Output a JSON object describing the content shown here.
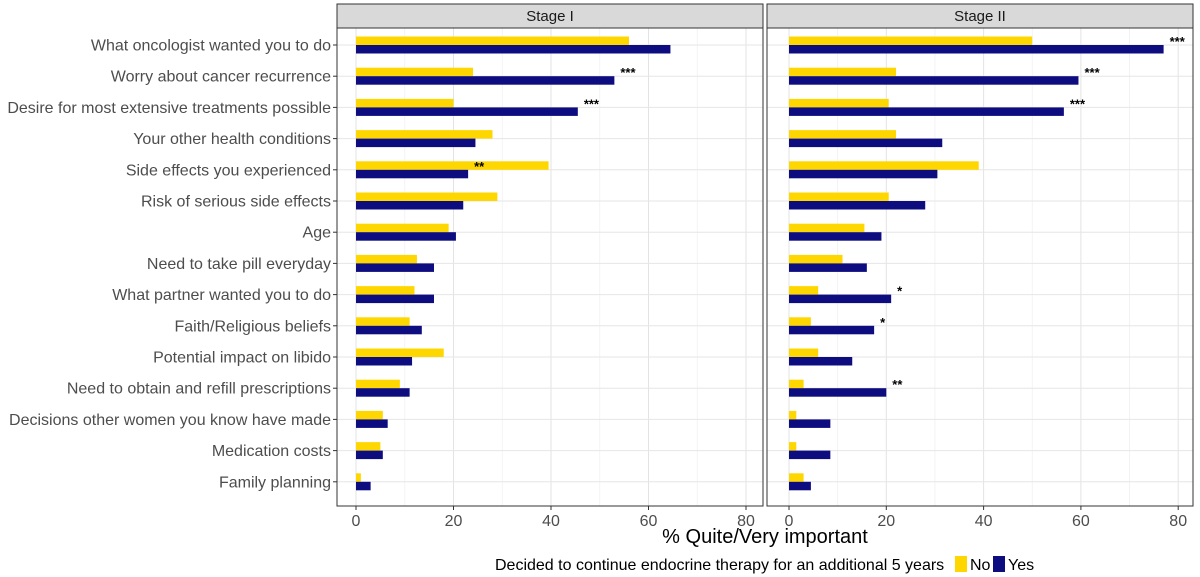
{
  "chart_data": {
    "type": "bar",
    "orientation": "horizontal",
    "panels": [
      "Stage I",
      "Stage II"
    ],
    "categories": [
      "What oncologist wanted you to do",
      "Worry about cancer recurrence",
      "Desire for most extensive treatments possible",
      "Your other health conditions",
      "Side effects you experienced",
      "Risk of serious side effects",
      "Age",
      "Need to take pill everyday",
      "What partner wanted you to do",
      "Faith/Religious beliefs",
      "Potential impact on libido",
      "Need to obtain and refill prescriptions",
      "Decisions other women you know have made",
      "Medication costs",
      "Family planning"
    ],
    "series": [
      {
        "name": "No",
        "color": "#FFD700",
        "values_stage1": [
          56,
          24,
          20,
          28,
          39.5,
          29,
          19,
          12.5,
          12,
          11,
          18,
          9,
          5.5,
          5,
          1
        ],
        "values_stage2": [
          50,
          22,
          20.5,
          22,
          39,
          20.5,
          15.5,
          11,
          6,
          4.5,
          6,
          3,
          1.5,
          1.5,
          3
        ]
      },
      {
        "name": "Yes",
        "color": "#0D0D80",
        "values_stage1": [
          64.5,
          53,
          45.5,
          24.5,
          23,
          22,
          20.5,
          16,
          16,
          13.5,
          11.5,
          11,
          6.5,
          5.5,
          3
        ],
        "values_stage2": [
          77,
          59.5,
          56.5,
          31.5,
          30.5,
          28,
          19,
          16,
          21,
          17.5,
          13,
          20,
          8.5,
          8.5,
          4.5
        ]
      }
    ],
    "significance_stage1": [
      "",
      "***",
      "***",
      "",
      "**",
      "",
      "",
      "",
      "",
      "",
      "",
      "",
      "",
      "",
      ""
    ],
    "significance_stage2": [
      "***",
      "***",
      "***",
      "",
      "",
      "",
      "",
      "",
      "*",
      "*",
      "",
      "**",
      "",
      "",
      ""
    ],
    "xlim": [
      -5,
      82
    ],
    "xticks": [
      "0",
      "20",
      "40",
      "60",
      "80"
    ],
    "xlabel": "% Quite/Very important",
    "legend_title": "Decided to continue endocrine therapy for an additional 5 years",
    "legend_position": "bottom",
    "grid": true
  }
}
